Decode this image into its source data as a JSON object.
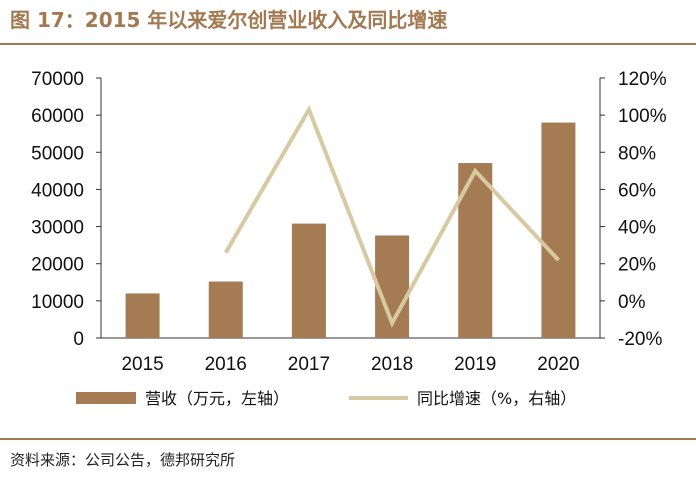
{
  "header": {
    "title": "图 17：2015 年以来爱尔创营业收入及同比增速"
  },
  "footer": {
    "source": "资料来源：公司公告，德邦研究所"
  },
  "colors": {
    "bar": "#a47b52",
    "line": "#d8c9a3",
    "accent": "#a27950"
  },
  "chart_data": {
    "type": "bar",
    "categories": [
      "2015",
      "2016",
      "2017",
      "2018",
      "2019",
      "2020"
    ],
    "series": [
      {
        "name": "营收（万元，左轴）",
        "type": "bar",
        "axis": "left",
        "values": [
          12000,
          15200,
          30800,
          27600,
          47100,
          58000
        ]
      },
      {
        "name": "同比增速（%，右轴）",
        "type": "line",
        "axis": "right",
        "values": [
          null,
          26,
          103,
          -12,
          70,
          22
        ]
      }
    ],
    "left_axis": {
      "ylim": [
        0,
        70000
      ],
      "ticks": [
        "0",
        "10000",
        "20000",
        "30000",
        "40000",
        "50000",
        "60000",
        "70000"
      ]
    },
    "right_axis": {
      "ylim": [
        -20,
        120
      ],
      "ticks": [
        "-20%",
        "0%",
        "20%",
        "40%",
        "60%",
        "80%",
        "100%",
        "120%"
      ]
    },
    "legend": {
      "position": "bottom"
    },
    "grid": false
  }
}
